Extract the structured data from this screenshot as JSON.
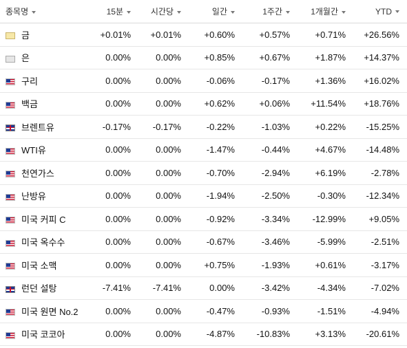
{
  "columns": [
    {
      "key": "name",
      "label": "종목명"
    },
    {
      "key": "m15",
      "label": "15분"
    },
    {
      "key": "h1",
      "label": "시간당"
    },
    {
      "key": "d1",
      "label": "일간"
    },
    {
      "key": "w1",
      "label": "1주간"
    },
    {
      "key": "mo1",
      "label": "1개월간"
    },
    {
      "key": "ytd",
      "label": "YTD"
    }
  ],
  "rows": [
    {
      "flag": "gold",
      "name": "금",
      "m15": "+0.01%",
      "h1": "+0.01%",
      "d1": "+0.60%",
      "w1": "+0.57%",
      "mo1": "+0.71%",
      "ytd": "+26.56%"
    },
    {
      "flag": "silver",
      "name": "은",
      "m15": "0.00%",
      "h1": "0.00%",
      "d1": "+0.85%",
      "w1": "+0.67%",
      "mo1": "+1.87%",
      "ytd": "+14.37%"
    },
    {
      "flag": "us",
      "name": "구리",
      "m15": "0.00%",
      "h1": "0.00%",
      "d1": "-0.06%",
      "w1": "-0.17%",
      "mo1": "+1.36%",
      "ytd": "+16.02%"
    },
    {
      "flag": "us",
      "name": "백금",
      "m15": "0.00%",
      "h1": "0.00%",
      "d1": "+0.62%",
      "w1": "+0.06%",
      "mo1": "+11.54%",
      "ytd": "+18.76%"
    },
    {
      "flag": "uk",
      "name": "브렌트유",
      "m15": "-0.17%",
      "h1": "-0.17%",
      "d1": "-0.22%",
      "w1": "-1.03%",
      "mo1": "+0.22%",
      "ytd": "-15.25%"
    },
    {
      "flag": "us",
      "name": "WTI유",
      "m15": "0.00%",
      "h1": "0.00%",
      "d1": "-1.47%",
      "w1": "-0.44%",
      "mo1": "+4.67%",
      "ytd": "-14.48%"
    },
    {
      "flag": "us",
      "name": "천연가스",
      "m15": "0.00%",
      "h1": "0.00%",
      "d1": "-0.70%",
      "w1": "-2.94%",
      "mo1": "+6.19%",
      "ytd": "-2.78%"
    },
    {
      "flag": "us",
      "name": "난방유",
      "m15": "0.00%",
      "h1": "0.00%",
      "d1": "-1.94%",
      "w1": "-2.50%",
      "mo1": "-0.30%",
      "ytd": "-12.34%"
    },
    {
      "flag": "us",
      "name": "미국 커피 C",
      "m15": "0.00%",
      "h1": "0.00%",
      "d1": "-0.92%",
      "w1": "-3.34%",
      "mo1": "-12.99%",
      "ytd": "+9.05%"
    },
    {
      "flag": "us",
      "name": "미국 옥수수",
      "m15": "0.00%",
      "h1": "0.00%",
      "d1": "-0.67%",
      "w1": "-3.46%",
      "mo1": "-5.99%",
      "ytd": "-2.51%"
    },
    {
      "flag": "us",
      "name": "미국 소맥",
      "m15": "0.00%",
      "h1": "0.00%",
      "d1": "+0.75%",
      "w1": "-1.93%",
      "mo1": "+0.61%",
      "ytd": "-3.17%"
    },
    {
      "flag": "uk",
      "name": "런던 설탕",
      "m15": "-7.41%",
      "h1": "-7.41%",
      "d1": "0.00%",
      "w1": "-3.42%",
      "mo1": "-4.34%",
      "ytd": "-7.02%"
    },
    {
      "flag": "us",
      "name": "미국 원면 No.2",
      "m15": "0.00%",
      "h1": "0.00%",
      "d1": "-0.47%",
      "w1": "-0.93%",
      "mo1": "-1.51%",
      "ytd": "-4.94%"
    },
    {
      "flag": "us",
      "name": "미국 코코아",
      "m15": "0.00%",
      "h1": "0.00%",
      "d1": "-4.87%",
      "w1": "-10.83%",
      "mo1": "+3.13%",
      "ytd": "-20.61%"
    }
  ],
  "colors": {
    "positive": "#d42a2a",
    "negative": "#2a73d4",
    "neutral": "#111111"
  }
}
